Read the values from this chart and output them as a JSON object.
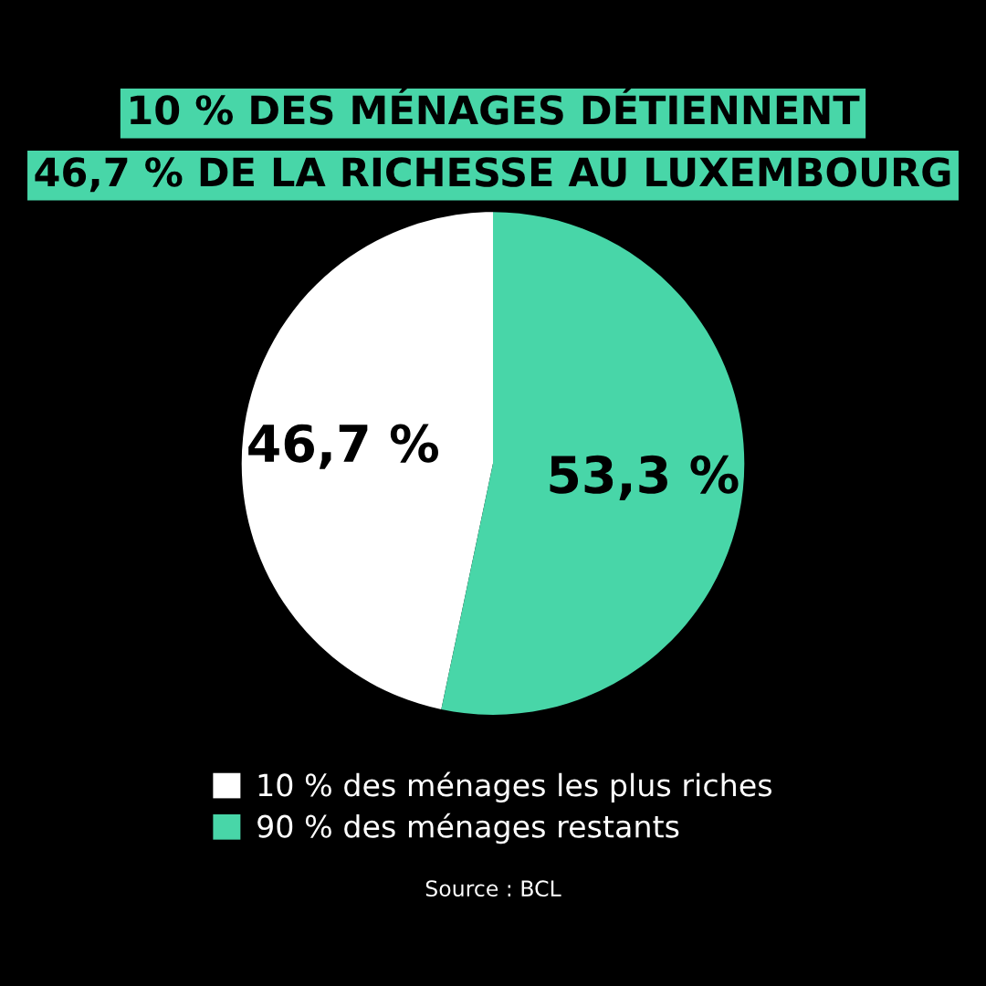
{
  "chart_data": {
    "type": "pie",
    "title": "10 % DES MÉNAGES DÉTIENNENT\n46,7 % DE LA RICHESSE AU LUXEMBOURG",
    "categories": [
      "10 % des ménages les plus riches",
      "90 % des ménages restants"
    ],
    "values": [
      46.7,
      53.3
    ],
    "colors": [
      "#ffffff",
      "#48d6a8"
    ],
    "value_labels": [
      "46,7 %",
      "53,3 %"
    ],
    "legend": "bottom",
    "annotations": [
      "Source : BCL"
    ]
  }
}
